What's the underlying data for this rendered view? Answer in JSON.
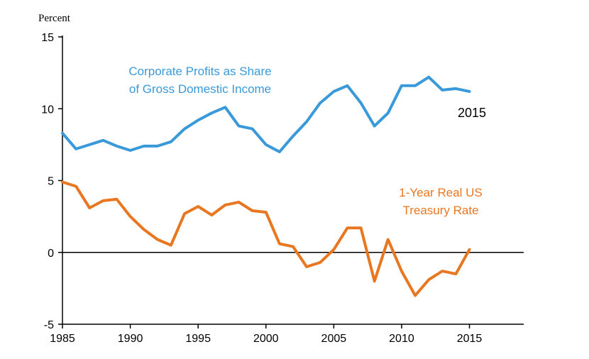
{
  "chart_data": {
    "type": "line",
    "ylabel": "Percent",
    "ylim": [
      -5,
      15
    ],
    "xlim": [
      1985,
      2019
    ],
    "yticks": [
      "15",
      "10",
      "5",
      "0",
      "-5"
    ],
    "xticks": [
      "1985",
      "1990",
      "1995",
      "2000",
      "2005",
      "2010",
      "2015"
    ],
    "grid": false,
    "annotations": {
      "end_year": "2015"
    },
    "x": [
      1985,
      1986,
      1987,
      1988,
      1989,
      1990,
      1991,
      1992,
      1993,
      1994,
      1995,
      1996,
      1997,
      1998,
      1999,
      2000,
      2001,
      2002,
      2003,
      2004,
      2005,
      2006,
      2007,
      2008,
      2009,
      2010,
      2011,
      2012,
      2013,
      2014,
      2015
    ],
    "series": [
      {
        "name_lines": [
          "Corporate Profits as Share",
          "of Gross Domestic Income"
        ],
        "color": "#3a9ad9",
        "values": [
          8.3,
          7.2,
          7.5,
          7.8,
          7.4,
          7.1,
          7.4,
          7.4,
          7.7,
          8.6,
          9.2,
          9.7,
          10.1,
          8.8,
          8.6,
          7.5,
          7.0,
          8.1,
          9.1,
          10.4,
          11.2,
          11.6,
          10.4,
          8.8,
          9.7,
          11.6,
          11.6,
          12.2,
          11.3,
          11.4,
          11.2
        ]
      },
      {
        "name_lines": [
          "1-Year Real US",
          "Treasury Rate"
        ],
        "color": "#e87722",
        "values": [
          4.9,
          4.6,
          3.1,
          3.6,
          3.7,
          2.5,
          1.6,
          0.9,
          0.5,
          2.7,
          3.2,
          2.6,
          3.3,
          3.5,
          2.9,
          2.8,
          0.6,
          0.4,
          -1.0,
          -0.7,
          0.2,
          1.7,
          1.7,
          -2.0,
          0.9,
          -1.3,
          -3.0,
          -1.9,
          -1.3,
          -1.5,
          0.2
        ]
      }
    ]
  }
}
